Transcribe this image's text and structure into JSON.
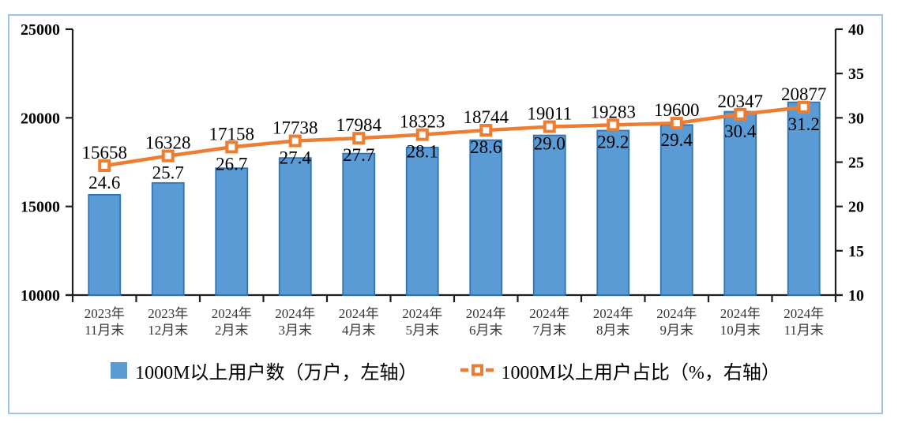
{
  "frame": {
    "border_color": "#9DC3E6",
    "background": "#FFFFFF"
  },
  "chart_data": {
    "type": "bar+line",
    "title": "",
    "categories": [
      [
        "2023年",
        "11月末"
      ],
      [
        "2023年",
        "12月末"
      ],
      [
        "2024年",
        "2月末"
      ],
      [
        "2024年",
        "3月末"
      ],
      [
        "2024年",
        "4月末"
      ],
      [
        "2024年",
        "5月末"
      ],
      [
        "2024年",
        "6月末"
      ],
      [
        "2024年",
        "7月末"
      ],
      [
        "2024年",
        "8月末"
      ],
      [
        "2024年",
        "9月末"
      ],
      [
        "2024年",
        "10月末"
      ],
      [
        "2024年",
        "11月末"
      ]
    ],
    "series": [
      {
        "name": "1000M以上用户数（万户，左轴）",
        "type": "bar",
        "axis": "left",
        "color": "#5B9BD5",
        "border_color": "#2E75B6",
        "values": [
          15658,
          16328,
          17158,
          17738,
          17984,
          18323,
          18744,
          19011,
          19283,
          19600,
          20347,
          20877
        ],
        "labels": [
          "15658",
          "16328",
          "17158",
          "17738",
          "17984",
          "18323",
          "18744",
          "19011",
          "19283",
          "19600",
          "20347",
          "20877"
        ]
      },
      {
        "name": "1000M以上用户占比（%，右轴）",
        "type": "line",
        "axis": "right",
        "color": "#ED7D31",
        "marker": "square-white-center",
        "values": [
          24.6,
          25.7,
          26.7,
          27.4,
          27.7,
          28.1,
          28.6,
          29.0,
          29.2,
          29.4,
          30.4,
          31.2
        ],
        "labels": [
          "24.6",
          "25.7",
          "26.7",
          "27.4",
          "27.7",
          "28.1",
          "28.6",
          "29.0",
          "29.2",
          "29.4",
          "30.4",
          "31.2"
        ]
      }
    ],
    "left_axis": {
      "min": 10000,
      "max": 25000,
      "step": 5000,
      "ticks": [
        10000,
        15000,
        20000,
        25000
      ],
      "tick_labels": [
        "10000",
        "15000",
        "20000",
        "25000"
      ]
    },
    "right_axis": {
      "min": 10,
      "max": 40,
      "step": 5,
      "ticks": [
        10,
        15,
        20,
        25,
        30,
        35,
        40
      ],
      "tick_labels": [
        "10",
        "15",
        "20",
        "25",
        "30",
        "35",
        "40"
      ]
    },
    "grid": false,
    "legend_position": "bottom"
  }
}
